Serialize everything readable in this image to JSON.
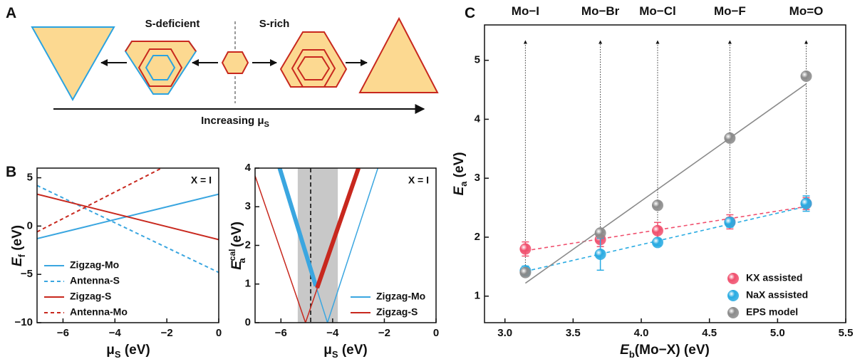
{
  "diagram": {
    "panel_label": "A",
    "left_label": "S-deficient",
    "right_label": "S-rich",
    "arrow_label": [
      "Increasing μ",
      "S"
    ]
  },
  "chart_data": [
    {
      "type": "line",
      "panel_label": "B",
      "xlabel": [
        "μ",
        "S",
        " (eV)"
      ],
      "ylabel": [
        "E",
        "f",
        " (eV)"
      ],
      "xlim": [
        -7,
        0
      ],
      "ylim": [
        -10,
        6
      ],
      "xticks": [
        {
          "value": -6,
          "label": "−6"
        },
        {
          "value": -4,
          "label": "−4"
        },
        {
          "value": -2,
          "label": "−2"
        },
        0
      ],
      "yticks": [
        {
          "value": -10,
          "label": "−10"
        },
        {
          "value": -5,
          "label": "−5"
        },
        0,
        5
      ],
      "annotation": "X = I",
      "legend": "lower left",
      "series": [
        {
          "name": "Zigzag-Mo",
          "color": "#3aa6e0",
          "dash": false,
          "x": [
            -7,
            0
          ],
          "values": [
            -1.3,
            3.3
          ]
        },
        {
          "name": "Antenna-S",
          "color": "#3aa6e0",
          "dash": true,
          "x": [
            -7,
            0
          ],
          "values": [
            4.2,
            -4.8
          ]
        },
        {
          "name": "Zigzag-S",
          "color": "#c8281e",
          "dash": false,
          "x": [
            -7,
            0
          ],
          "values": [
            3.3,
            -1.4
          ]
        },
        {
          "name": "Antenna-Mo",
          "color": "#c8281e",
          "dash": true,
          "x": [
            -7,
            -2.2
          ],
          "values": [
            -0.6,
            6
          ]
        }
      ]
    },
    {
      "type": "line",
      "xlabel": [
        "μ",
        "S",
        " (eV)"
      ],
      "ylabel": [
        "E",
        "cal",
        "a",
        " (eV)"
      ],
      "xlim": [
        -7,
        0
      ],
      "ylim": [
        0,
        4
      ],
      "xticks": [
        {
          "value": -6,
          "label": "−6"
        },
        {
          "value": -4,
          "label": "−4"
        },
        {
          "value": -2,
          "label": "−2"
        },
        0
      ],
      "yticks": [
        0,
        1,
        2,
        3,
        4
      ],
      "annotation": "X = I",
      "legend": "lower right",
      "shade": [
        -5.35,
        -3.8
      ],
      "shade_color": "#c8c8c8",
      "vline": -4.85,
      "series": [
        {
          "name": "Zigzag-Mo",
          "color": "#3aa6e0",
          "dash": false,
          "style": "thin",
          "x": [
            -6.1,
            -4.2,
            -2.25
          ],
          "values": [
            4,
            0,
            4
          ]
        },
        {
          "name": "Zigzag-S",
          "color": "#c8281e",
          "dash": false,
          "style": "thin",
          "x": [
            -7,
            -5.05,
            -3.0
          ],
          "values": [
            3.8,
            0,
            4
          ]
        },
        {
          "color": "#3aa6e0",
          "dash": false,
          "style": "thick",
          "x": [
            -6.05,
            -4.65
          ],
          "values": [
            4,
            0.95
          ]
        },
        {
          "color": "#c8281e",
          "dash": false,
          "style": "thick",
          "x": [
            -4.6,
            -3.0
          ],
          "values": [
            0.9,
            4
          ]
        }
      ]
    },
    {
      "type": "scatter",
      "panel_label": "C",
      "xlabel": [
        "E",
        "b",
        "(Mo−X) (eV)"
      ],
      "ylabel": [
        "E",
        "a",
        " (eV)"
      ],
      "xlim": [
        2.85,
        5.5
      ],
      "ylim": [
        0.55,
        5.6
      ],
      "xticks": [
        {
          "value": 3,
          "label": "3.0"
        },
        3.5,
        {
          "value": 4,
          "label": "4.0"
        },
        4.5,
        {
          "value": 5,
          "label": "5.0"
        },
        5.5
      ],
      "yticks": [
        1,
        2,
        3,
        4,
        5
      ],
      "top_labels": [
        "Mo−I",
        "Mo−Br",
        "Mo−Cl",
        "Mo−F",
        "Mo=O"
      ],
      "x": [
        3.15,
        3.7,
        4.12,
        4.65,
        5.21
      ],
      "legend": "lower right",
      "series": [
        {
          "name": "KX assisted",
          "color": "#f0506e",
          "values": [
            1.8,
            1.96,
            2.11,
            2.26,
            2.57
          ],
          "errors": [
            0.12,
            0.12,
            0.14,
            0.12,
            0.1
          ],
          "fit": {
            "dash": true,
            "x": [
              3.15,
              5.21
            ],
            "values": [
              1.77,
              2.52
            ]
          }
        },
        {
          "name": "NaX assisted",
          "color": "#29abe2",
          "values": [
            1.43,
            1.71,
            1.91,
            2.25,
            2.57
          ],
          "errors": [
            0.08,
            0.27,
            0.05,
            0.08,
            0.13
          ],
          "fit": {
            "dash": true,
            "x": [
              3.15,
              5.21
            ],
            "values": [
              1.42,
              2.52
            ]
          }
        },
        {
          "name": "EPS model",
          "color": "#8a8a8a",
          "values": [
            1.4,
            2.07,
            2.54,
            3.68,
            4.73
          ],
          "errors": [
            0,
            0,
            0,
            0,
            0
          ],
          "fit": {
            "dash": false,
            "x": [
              3.15,
              5.21
            ],
            "values": [
              1.22,
              4.6
            ]
          }
        }
      ]
    }
  ]
}
